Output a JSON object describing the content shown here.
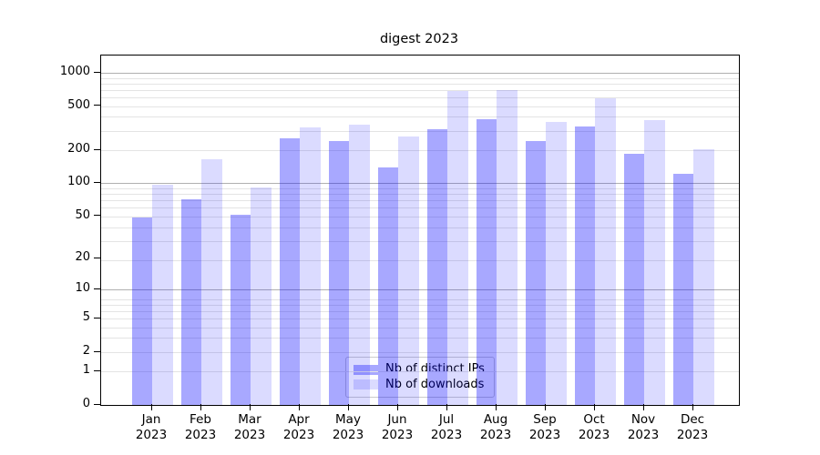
{
  "chart_data": {
    "type": "bar",
    "title": "digest 2023",
    "categories": [
      "Jan 2023",
      "Feb 2023",
      "Mar 2023",
      "Apr 2023",
      "May 2023",
      "Jun 2023",
      "Jul 2023",
      "Aug 2023",
      "Sep 2023",
      "Oct 2023",
      "Nov 2023",
      "Dec 2023"
    ],
    "month_labels": [
      "Jan",
      "Feb",
      "Mar",
      "Apr",
      "May",
      "Jun",
      "Jul",
      "Aug",
      "Sep",
      "Oct",
      "Nov",
      "Dec"
    ],
    "year_label": "2023",
    "series": [
      {
        "name": "Nb of distinct IPs",
        "color": "#0000ff",
        "opacity": 0.34,
        "values": [
          49,
          72,
          52,
          255,
          245,
          140,
          310,
          385,
          245,
          330,
          185,
          122
        ]
      },
      {
        "name": "Nb of downloads",
        "color": "#0000ff",
        "opacity": 0.14,
        "values": [
          97,
          165,
          92,
          325,
          345,
          265,
          690,
          710,
          360,
          590,
          375,
          205
        ]
      }
    ],
    "yscale": "log1p",
    "ytick_values": [
      0,
      1,
      2,
      5,
      10,
      20,
      50,
      100,
      200,
      500,
      1000
    ],
    "ytick_labels": [
      "0",
      "1",
      "2",
      "5",
      "10",
      "20",
      "50",
      "100",
      "200",
      "500",
      "1000"
    ],
    "ylim": [
      0,
      1430
    ],
    "xlabel": "",
    "ylabel": "",
    "grid": true,
    "legend_position": "lower center"
  },
  "colors": {
    "bar_distinct_ips_effective": "#a8a8ff",
    "bar_downloads_effective": "#dcdcff",
    "grid_major": "#b0b0b0",
    "grid_minor": "#e4e4e4",
    "axis": "#000000",
    "background": "#ffffff"
  }
}
